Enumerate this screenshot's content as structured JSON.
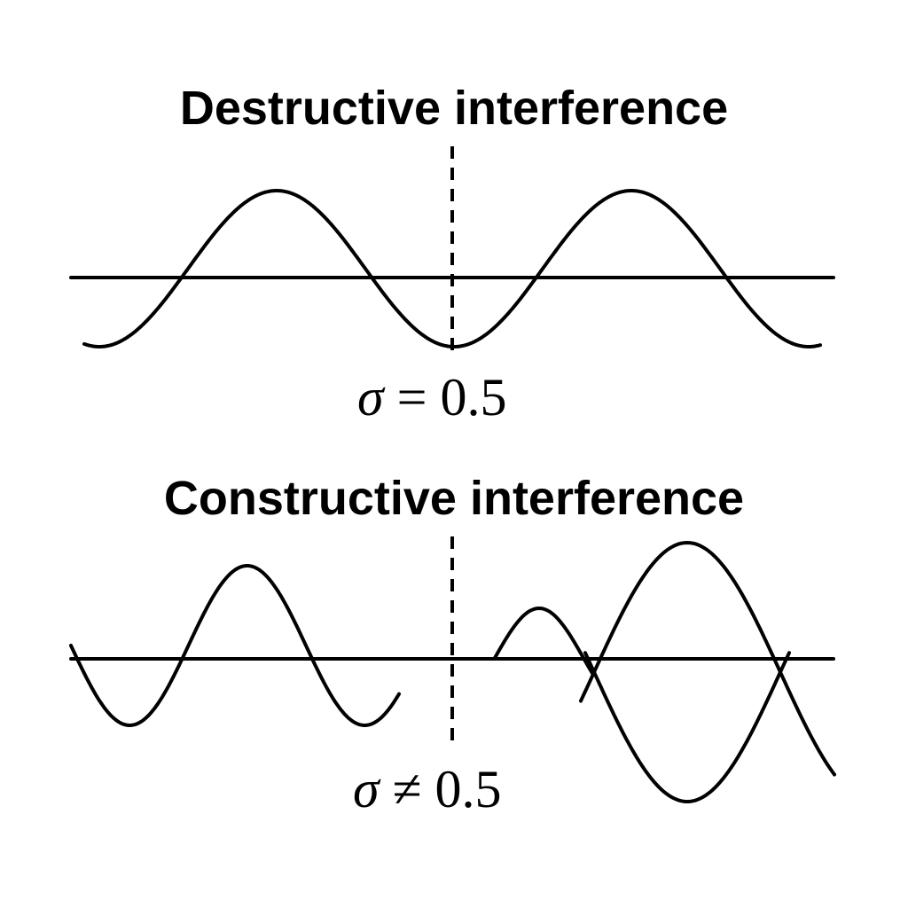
{
  "panels": {
    "top": {
      "title": "Destructive interference",
      "equation": {
        "symbol": "σ",
        "operator": "=",
        "value": "0.5"
      }
    },
    "bottom": {
      "title": "Constructive interference",
      "equation": {
        "symbol": "σ",
        "operator": "≠",
        "value": "0.5"
      }
    }
  },
  "colors": {
    "stroke": "#000000",
    "background": "#ffffff"
  }
}
